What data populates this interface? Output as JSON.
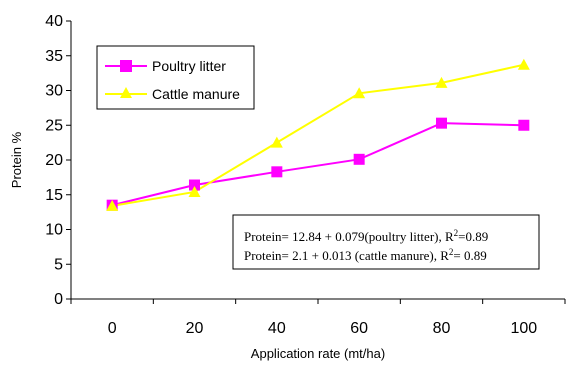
{
  "chart_data": {
    "type": "line",
    "title": "",
    "xlabel": "Application rate (mt/ha)",
    "ylabel": "Protein %",
    "x": [
      0,
      20,
      40,
      60,
      80,
      100
    ],
    "xticks": [
      "0",
      "20",
      "40",
      "60",
      "80",
      "100"
    ],
    "yticks": [
      "0",
      "5",
      "10",
      "15",
      "20",
      "25",
      "30",
      "35",
      "40"
    ],
    "ylim": [
      0,
      40
    ],
    "grid": false,
    "legend_position": "top-left",
    "series": [
      {
        "name": "Poultry litter",
        "color": "#ff00ff",
        "marker": "square",
        "values": [
          13.5,
          16.4,
          18.3,
          20.1,
          25.3,
          25.0
        ]
      },
      {
        "name": "Cattle manure",
        "color": "#ffff00",
        "marker": "triangle",
        "values": [
          13.4,
          15.4,
          22.5,
          29.6,
          31.1,
          33.7
        ]
      }
    ],
    "annotation": {
      "line1_main": "Protein= 12.84 + 0.079(poultry litter), R",
      "line1_sup": "2",
      "line1_tail": "=0.89",
      "line2_main": "Protein= 2.1 + 0.013 (cattle manure), R",
      "line2_sup": "2",
      "line2_tail": "= 0.89"
    }
  }
}
